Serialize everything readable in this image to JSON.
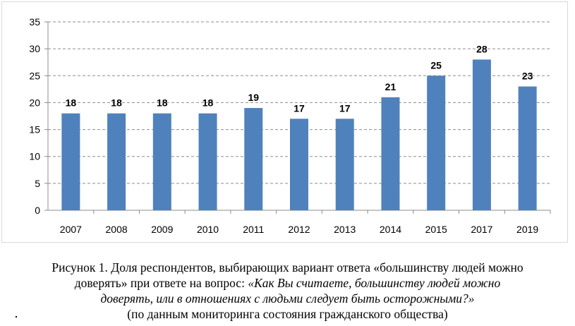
{
  "chart_data": {
    "type": "bar",
    "categories": [
      "2007",
      "2008",
      "2009",
      "2010",
      "2011",
      "2012",
      "2013",
      "2014",
      "2015",
      "2017",
      "2019"
    ],
    "values": [
      18,
      18,
      18,
      18,
      19,
      17,
      17,
      21,
      25,
      28,
      23
    ],
    "ylim": [
      0,
      35
    ],
    "yticks": [
      "0",
      "5",
      "10",
      "15",
      "20",
      "25",
      "30",
      "35"
    ],
    "grid": "dashed horizontal",
    "bar_color": "#4f81bd",
    "title": "",
    "xlabel": "",
    "ylabel": ""
  },
  "caption": {
    "line1": "Рисунок 1. Доля респондентов, выбирающих вариант ответа «большинству людей можно",
    "line2_normal": "доверять» при ответе на вопрос: ",
    "line2_italic": "«Как Вы считаете, большинству людей можно",
    "line3_italic": "доверять, или в отношениях с людьми следует быть осторожными?»",
    "line4": "(по данным мониторинга состояния гражданского общества)"
  }
}
